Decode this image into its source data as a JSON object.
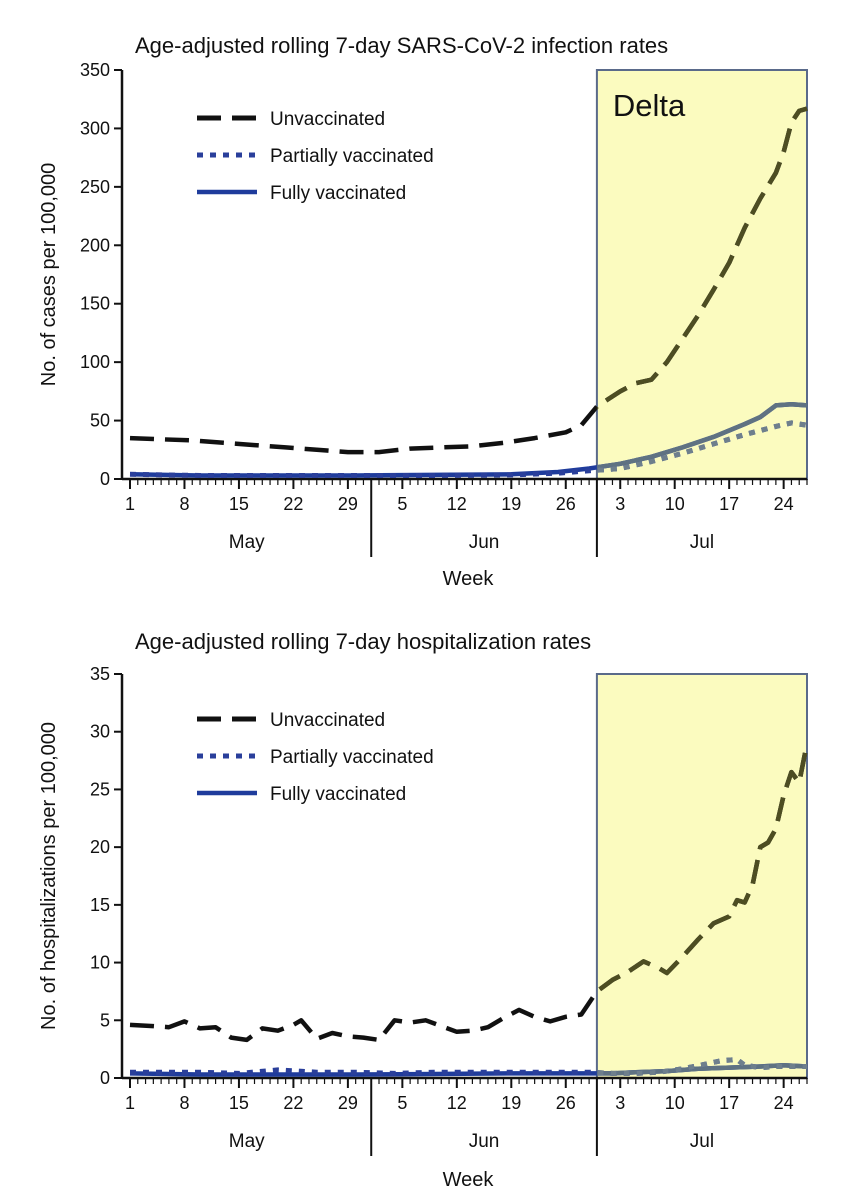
{
  "chart_data": [
    {
      "type": "line",
      "title": "Age-adjusted rolling 7-day SARS-CoV-2 infection rates",
      "xlabel": "Week",
      "ylabel": "No. of cases per 100,000",
      "ylim": [
        0,
        350
      ],
      "yticks": [
        0,
        50,
        100,
        150,
        200,
        250,
        300,
        350
      ],
      "xlim": [
        1,
        88
      ],
      "xticks": [
        {
          "day": 1,
          "label": "1"
        },
        {
          "day": 8,
          "label": "8"
        },
        {
          "day": 15,
          "label": "15"
        },
        {
          "day": 22,
          "label": "22"
        },
        {
          "day": 29,
          "label": "29"
        },
        {
          "day": 36,
          "label": "5"
        },
        {
          "day": 43,
          "label": "12"
        },
        {
          "day": 50,
          "label": "19"
        },
        {
          "day": 57,
          "label": "26"
        },
        {
          "day": 64,
          "label": "3"
        },
        {
          "day": 71,
          "label": "10"
        },
        {
          "day": 78,
          "label": "17"
        },
        {
          "day": 85,
          "label": "24"
        }
      ],
      "months": [
        {
          "label": "May",
          "center": 16
        },
        {
          "label": "Jun",
          "center": 46.5
        },
        {
          "label": "Jul",
          "center": 74.5
        }
      ],
      "month_separators": [
        32,
        61
      ],
      "region": {
        "label": "Delta",
        "from": 61,
        "to": 88,
        "color": "#fbfbbf"
      },
      "legend_position": "top-left",
      "series": [
        {
          "name": "Unvaccinated",
          "style": "dashed",
          "color": "#111111",
          "overlay_color": "#4d4d22",
          "points": [
            [
              1,
              35
            ],
            [
              5,
              34
            ],
            [
              9,
              33
            ],
            [
              13,
              31
            ],
            [
              17,
              29
            ],
            [
              21,
              27
            ],
            [
              25,
              25
            ],
            [
              29,
              23
            ],
            [
              33,
              23
            ],
            [
              37,
              26
            ],
            [
              41,
              27
            ],
            [
              45,
              28
            ],
            [
              49,
              31
            ],
            [
              53,
              35
            ],
            [
              57,
              40
            ],
            [
              59,
              46
            ],
            [
              61,
              62
            ],
            [
              64,
              75
            ],
            [
              66,
              82
            ],
            [
              68,
              85
            ],
            [
              70,
              100
            ],
            [
              72,
              120
            ],
            [
              74,
              140
            ],
            [
              76,
              162
            ],
            [
              78,
              185
            ],
            [
              80,
              215
            ],
            [
              82,
              240
            ],
            [
              84,
              262
            ],
            [
              85,
              280
            ],
            [
              86,
              305
            ],
            [
              87,
              315
            ],
            [
              88,
              317
            ]
          ]
        },
        {
          "name": "Partially vaccinated",
          "style": "dotted",
          "color": "#2a3f9b",
          "overlay_color": "#6e7f8c",
          "points": [
            [
              1,
              4
            ],
            [
              10,
              3
            ],
            [
              20,
              3
            ],
            [
              30,
              3
            ],
            [
              40,
              3
            ],
            [
              50,
              3.5
            ],
            [
              56,
              5
            ],
            [
              60,
              7
            ],
            [
              64,
              9
            ],
            [
              68,
              15
            ],
            [
              72,
              22
            ],
            [
              76,
              30
            ],
            [
              80,
              38
            ],
            [
              84,
              45
            ],
            [
              86,
              48
            ],
            [
              88,
              46
            ]
          ]
        },
        {
          "name": "Fully vaccinated",
          "style": "solid",
          "color": "#1f3c9c",
          "overlay_color": "#5f7282",
          "points": [
            [
              1,
              4
            ],
            [
              10,
              3
            ],
            [
              20,
              3
            ],
            [
              30,
              3
            ],
            [
              40,
              3.5
            ],
            [
              50,
              4
            ],
            [
              56,
              6
            ],
            [
              60,
              9
            ],
            [
              64,
              13
            ],
            [
              68,
              19
            ],
            [
              72,
              27
            ],
            [
              76,
              36
            ],
            [
              80,
              47
            ],
            [
              82,
              53
            ],
            [
              84,
              63
            ],
            [
              86,
              64
            ],
            [
              88,
              63
            ]
          ]
        }
      ]
    },
    {
      "type": "line",
      "title": "Age-adjusted rolling 7-day hospitalization rates",
      "xlabel": "Week",
      "ylabel": "No. of hospitalizations per 100,000",
      "ylim": [
        0,
        35
      ],
      "yticks": [
        0,
        5,
        10,
        15,
        20,
        25,
        30,
        35
      ],
      "xlim": [
        1,
        88
      ],
      "xticks": [
        {
          "day": 1,
          "label": "1"
        },
        {
          "day": 8,
          "label": "8"
        },
        {
          "day": 15,
          "label": "15"
        },
        {
          "day": 22,
          "label": "22"
        },
        {
          "day": 29,
          "label": "29"
        },
        {
          "day": 36,
          "label": "5"
        },
        {
          "day": 43,
          "label": "12"
        },
        {
          "day": 50,
          "label": "19"
        },
        {
          "day": 57,
          "label": "26"
        },
        {
          "day": 64,
          "label": "3"
        },
        {
          "day": 71,
          "label": "10"
        },
        {
          "day": 78,
          "label": "17"
        },
        {
          "day": 85,
          "label": "24"
        }
      ],
      "months": [
        {
          "label": "May",
          "center": 16
        },
        {
          "label": "Jun",
          "center": 46.5
        },
        {
          "label": "Jul",
          "center": 74.5
        }
      ],
      "month_separators": [
        32,
        61
      ],
      "region": {
        "label": "",
        "from": 61,
        "to": 88,
        "color": "#fbfbbf"
      },
      "legend_position": "top-left",
      "series": [
        {
          "name": "Unvaccinated",
          "style": "dashed",
          "color": "#111111",
          "overlay_color": "#4d4d22",
          "points": [
            [
              1,
              4.6
            ],
            [
              4,
              4.5
            ],
            [
              6,
              4.4
            ],
            [
              8,
              4.9
            ],
            [
              10,
              4.3
            ],
            [
              12,
              4.4
            ],
            [
              14,
              3.5
            ],
            [
              16,
              3.3
            ],
            [
              18,
              4.3
            ],
            [
              20,
              4.1
            ],
            [
              22,
              4.6
            ],
            [
              23,
              5.0
            ],
            [
              25,
              3.4
            ],
            [
              27,
              3.9
            ],
            [
              29,
              3.6
            ],
            [
              31,
              3.5
            ],
            [
              33,
              3.3
            ],
            [
              35,
              5.0
            ],
            [
              37,
              4.8
            ],
            [
              39,
              5.0
            ],
            [
              41,
              4.5
            ],
            [
              43,
              4.0
            ],
            [
              45,
              4.1
            ],
            [
              47,
              4.4
            ],
            [
              49,
              5.2
            ],
            [
              51,
              5.9
            ],
            [
              53,
              5.3
            ],
            [
              55,
              4.9
            ],
            [
              57,
              5.3
            ],
            [
              59,
              5.5
            ],
            [
              61,
              7.5
            ],
            [
              63,
              8.5
            ],
            [
              65,
              9.2
            ],
            [
              67,
              10.1
            ],
            [
              69,
              9.5
            ],
            [
              70,
              9.1
            ],
            [
              72,
              10.5
            ],
            [
              74,
              12.0
            ],
            [
              76,
              13.4
            ],
            [
              78,
              14.0
            ],
            [
              79,
              15.4
            ],
            [
              80,
              15.2
            ],
            [
              81,
              16.7
            ],
            [
              82,
              20.0
            ],
            [
              83,
              20.4
            ],
            [
              84,
              21.6
            ],
            [
              85,
              24.5
            ],
            [
              86,
              26.5
            ],
            [
              87,
              25.6
            ],
            [
              88,
              29.0
            ]
          ]
        },
        {
          "name": "Partially vaccinated",
          "style": "dotted",
          "color": "#2a3f9b",
          "overlay_color": "#6e7f8c",
          "points": [
            [
              1,
              0.5
            ],
            [
              5,
              0.5
            ],
            [
              10,
              0.5
            ],
            [
              15,
              0.4
            ],
            [
              20,
              0.7
            ],
            [
              25,
              0.5
            ],
            [
              30,
              0.5
            ],
            [
              35,
              0.4
            ],
            [
              40,
              0.5
            ],
            [
              45,
              0.5
            ],
            [
              50,
              0.5
            ],
            [
              55,
              0.5
            ],
            [
              60,
              0.5
            ],
            [
              63,
              0.4
            ],
            [
              66,
              0.4
            ],
            [
              69,
              0.5
            ],
            [
              72,
              0.8
            ],
            [
              75,
              1.2
            ],
            [
              77,
              1.5
            ],
            [
              79,
              1.6
            ],
            [
              80,
              1.1
            ],
            [
              82,
              0.9
            ],
            [
              84,
              1.0
            ],
            [
              86,
              1.0
            ],
            [
              88,
              1.0
            ]
          ]
        },
        {
          "name": "Fully vaccinated",
          "style": "solid",
          "color": "#1f3c9c",
          "overlay_color": "#5f7282",
          "points": [
            [
              1,
              0.4
            ],
            [
              10,
              0.3
            ],
            [
              20,
              0.3
            ],
            [
              30,
              0.3
            ],
            [
              40,
              0.35
            ],
            [
              50,
              0.4
            ],
            [
              60,
              0.4
            ],
            [
              63,
              0.4
            ],
            [
              66,
              0.5
            ],
            [
              70,
              0.6
            ],
            [
              74,
              0.8
            ],
            [
              78,
              0.9
            ],
            [
              82,
              1.0
            ],
            [
              85,
              1.1
            ],
            [
              88,
              1.0
            ]
          ]
        }
      ]
    }
  ]
}
